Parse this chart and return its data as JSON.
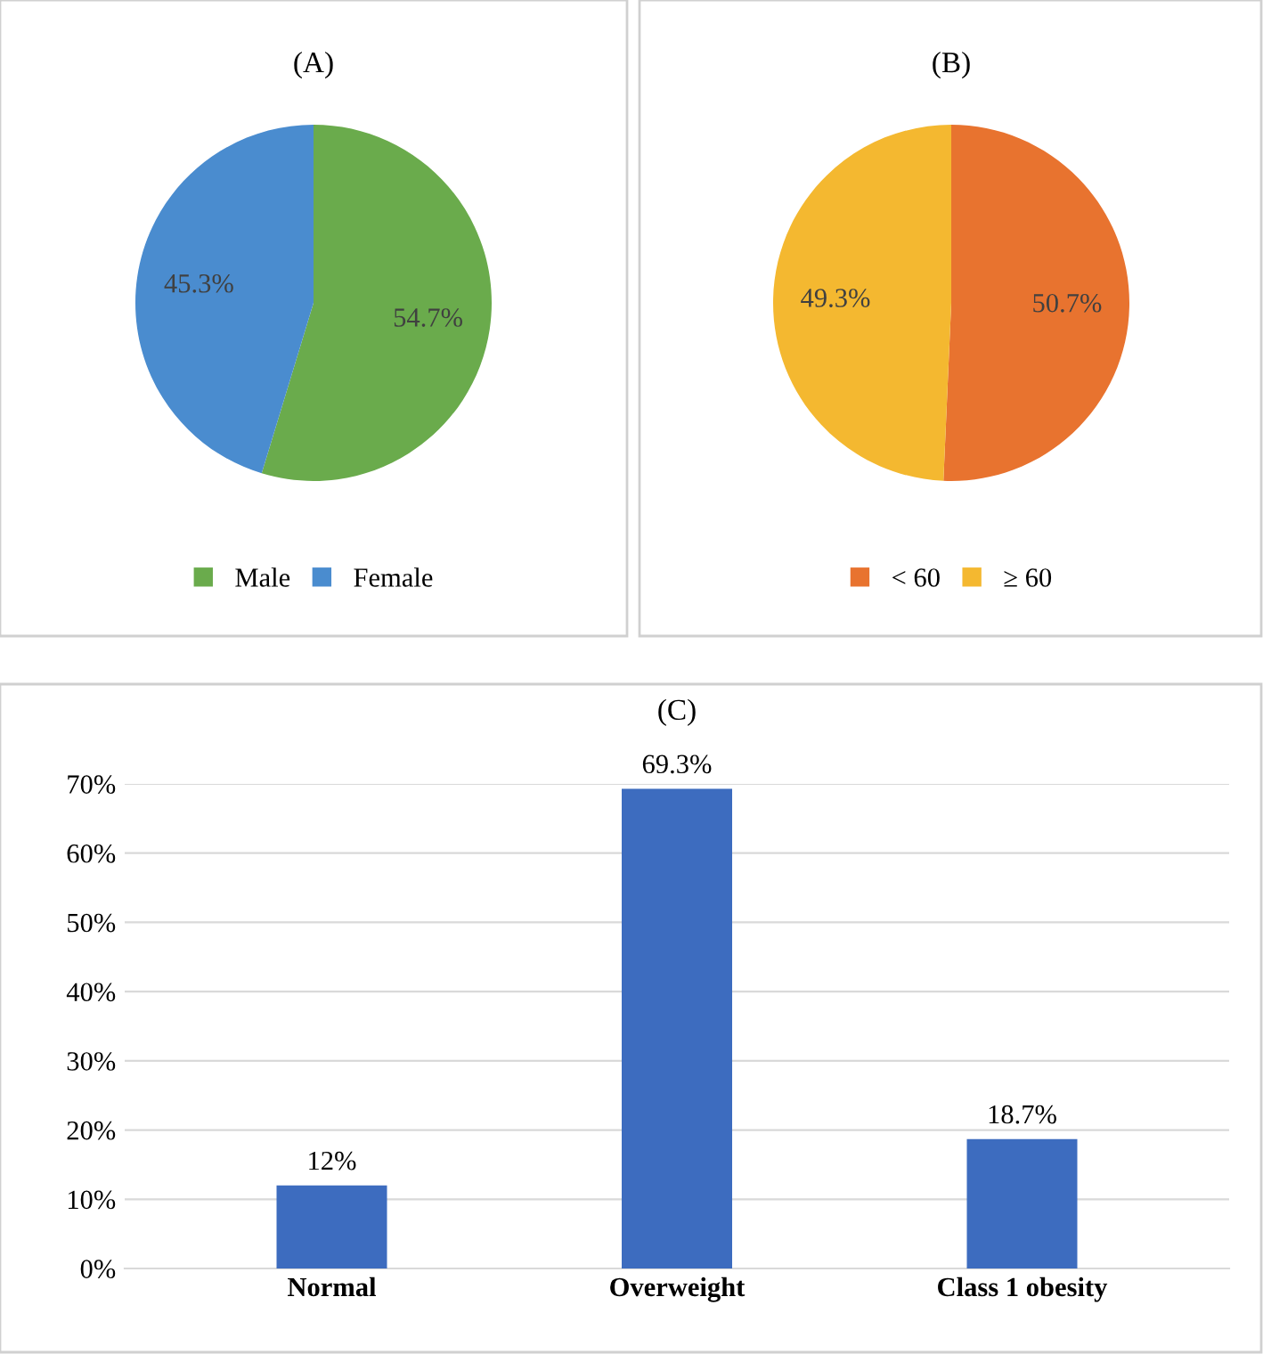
{
  "chart_data": [
    {
      "type": "pie",
      "title": "(A)",
      "categories": [
        "Male",
        "Female"
      ],
      "values": [
        54.7,
        45.3
      ],
      "colors": [
        "#6aab4c",
        "#4a8ccf"
      ],
      "value_labels": [
        "54.7%",
        "45.3%"
      ],
      "legend": "bottom"
    },
    {
      "type": "pie",
      "title": "(B)",
      "categories": [
        "< 60",
        "≥ 60"
      ],
      "values": [
        50.7,
        49.3
      ],
      "colors": [
        "#e8732f",
        "#f4b830"
      ],
      "value_labels": [
        "50.7%",
        "49.3%"
      ],
      "legend": "bottom"
    },
    {
      "type": "bar",
      "title": "(C)",
      "categories": [
        "Normal",
        "Overweight",
        "Class 1 obesity"
      ],
      "values": [
        12,
        69.3,
        18.7
      ],
      "color": "#3d6cbf",
      "value_labels": [
        "12%",
        "69.3%",
        "18.7%"
      ],
      "ylim": [
        0,
        70
      ],
      "yticks": [
        {
          "value": 0,
          "label": "0%"
        },
        {
          "value": 10,
          "label": "10%"
        },
        {
          "value": 20,
          "label": "20%"
        },
        {
          "value": 30,
          "label": "30%"
        },
        {
          "value": 40,
          "label": "40%"
        },
        {
          "value": 50,
          "label": "50%"
        },
        {
          "value": 60,
          "label": "60%"
        },
        {
          "value": 70,
          "label": "70%"
        }
      ],
      "grid": "y"
    }
  ]
}
